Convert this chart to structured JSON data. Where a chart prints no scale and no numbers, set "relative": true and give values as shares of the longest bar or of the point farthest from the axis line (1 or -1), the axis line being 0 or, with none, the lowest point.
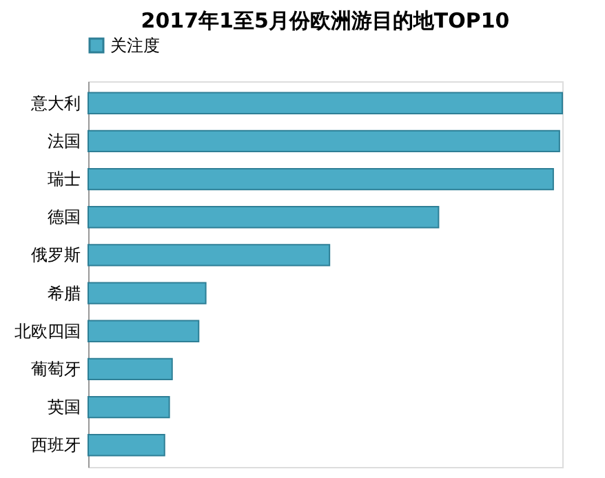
{
  "chart_data": {
    "type": "bar",
    "title": "2017年1至5月份欧洲游目的地TOP10",
    "orientation": "horizontal",
    "relative": true,
    "legend": "top",
    "categories": [
      "意大利",
      "法国",
      "瑞士",
      "德国",
      "俄罗斯",
      "希腊",
      "北欧四国",
      "葡萄牙",
      "英国",
      "西班牙"
    ],
    "series": [
      {
        "name": "关注度",
        "color": "#4bacc6",
        "values": [
          1,
          0.994,
          0.981,
          0.739,
          0.509,
          0.248,
          0.233,
          0.177,
          0.171,
          0.161
        ]
      }
    ]
  }
}
